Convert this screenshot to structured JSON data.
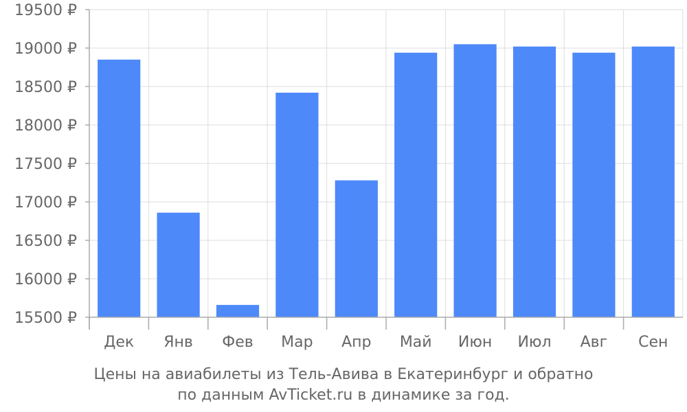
{
  "chart_data": {
    "type": "bar",
    "categories": [
      "Дек",
      "Янв",
      "Фев",
      "Мар",
      "Апр",
      "Май",
      "Июн",
      "Июл",
      "Авг",
      "Сен"
    ],
    "values": [
      18850,
      16860,
      15660,
      18420,
      17280,
      18940,
      19050,
      19020,
      18940,
      19020
    ],
    "ylim": [
      15500,
      19500
    ],
    "yticks": [
      "15500 ₽",
      "16000 ₽",
      "16500 ₽",
      "17000 ₽",
      "17500 ₽",
      "18000 ₽",
      "18500 ₽",
      "19000 ₽",
      "19500 ₽"
    ],
    "ytick_values": [
      15500,
      16000,
      16500,
      17000,
      17500,
      18000,
      18500,
      19000,
      19500
    ],
    "bar_color": "#4d89f9",
    "grid": true
  },
  "caption": {
    "line1": "Цены на авиабилеты из Тель-Авива в Екатеринбург и обратно",
    "line2": "по данным AvTicket.ru в динамике за год."
  }
}
